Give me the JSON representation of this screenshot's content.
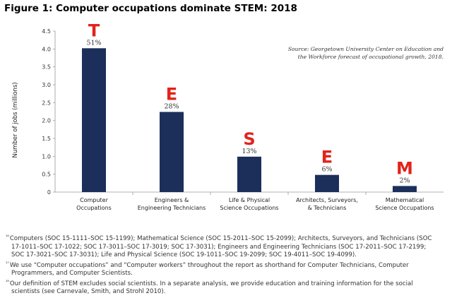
{
  "figure_title": "Figure 1: Computer occupations dominate STEM: 2018",
  "source_note_lines": [
    "Source: Georgetown University Center on Education and",
    "the Workforce forecast of occupational growth, 2018."
  ],
  "colors": {
    "bar": "#1b2f5a",
    "big_letter": "#e2231a",
    "axis": "#9a9a9a"
  },
  "chart_data": {
    "type": "bar",
    "title": "Figure 1: Computer occupations dominate STEM: 2018",
    "ylabel": "Number of jobs (millions)",
    "xlabel": "",
    "ylim": [
      0,
      4.5
    ],
    "yticks": [
      "0",
      "0.5",
      "1.0",
      "1.5",
      "2.0",
      "2.5",
      "3.0",
      "3.5",
      "4.0",
      "4.5"
    ],
    "categories": [
      [
        "Computer",
        "Occupations"
      ],
      [
        "Engineers &",
        "Engineering Technicians"
      ],
      [
        "Life & Physical",
        "Science Occupations"
      ],
      [
        "Architects, Surveyors,",
        "& Technicians"
      ],
      [
        "Mathematical",
        "Science Occupations"
      ]
    ],
    "values": [
      4.02,
      2.24,
      0.99,
      0.48,
      0.17
    ],
    "data_labels": [
      "51%",
      "28%",
      "13%",
      "6%",
      "2%"
    ],
    "annotations": [
      "T",
      "E",
      "S",
      "E",
      "M"
    ],
    "grid": false
  },
  "footnotes": [
    {
      "marker": "¹⁶",
      "text": "Computers (SOC 15-1111–SOC 15-1199); Mathematical Science (SOC 15-2011–SOC 15-2099); Architects, Surveyors, and Technicians (SOC 17-1011–SOC 17-1022; SOC 17-3011–SOC 17-3019; SOC 17-3031); Engineers and Engineering Technicians (SOC 17-2011–SOC 17-2199; SOC 17-3021–SOC 17-3031); Life and Physical Science (SOC 19-1011–SOC 19-2099; SOC 19-4011–SOC 19-4099)."
    },
    {
      "marker": "¹⁷",
      "text": "We use “Computer occupations” and “Computer workers” throughout the report as shorthand for Computer Technicians, Computer Programmers, and Computer Scientists."
    },
    {
      "marker": "¹⁸",
      "text": "Our definition of STEM excludes social scientists. In a separate analysis, we provide education and training information for the social scientists (see Carnevale, Smith, and Strohl 2010)."
    }
  ]
}
